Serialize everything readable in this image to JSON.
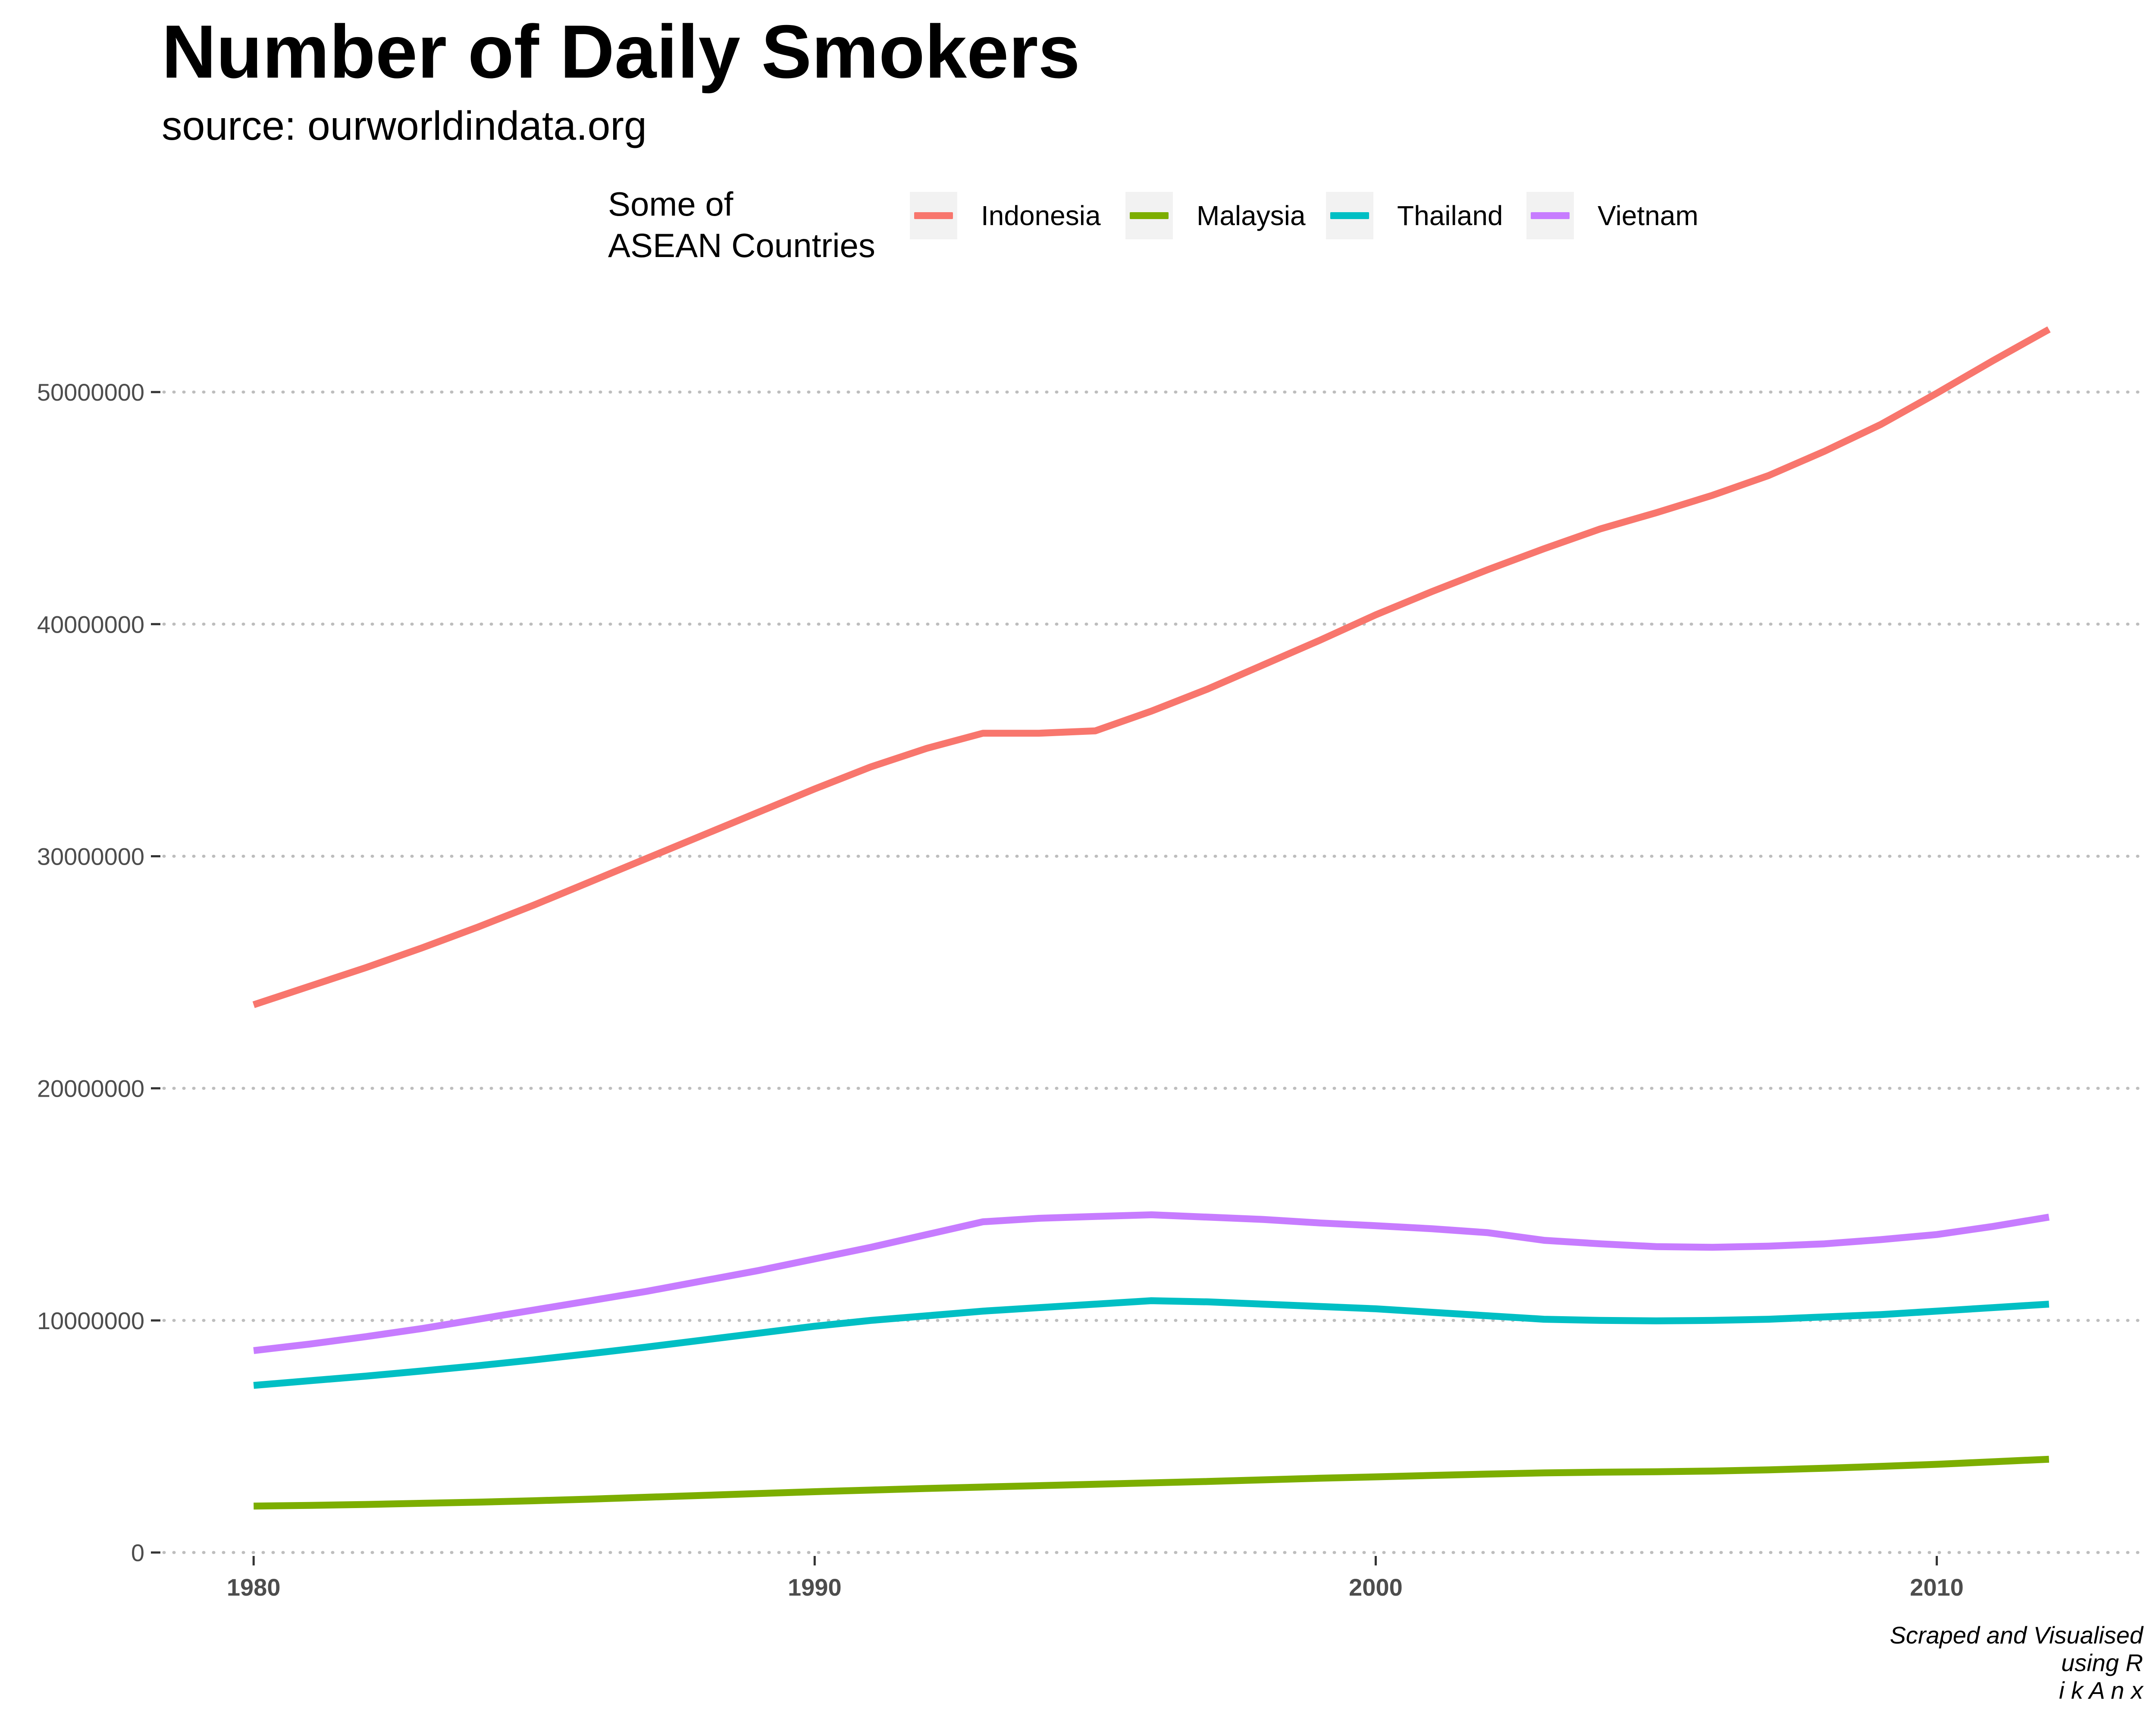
{
  "chart_data": {
    "type": "line",
    "title": "Number of Daily Smokers",
    "subtitle": "source: ourworldindata.org",
    "caption": [
      "Scraped and Visualised",
      "using R",
      "i k A n x"
    ],
    "legend": {
      "title": "Some of\nASEAN Countries",
      "placement": "top"
    },
    "xlabel": "",
    "ylabel": "",
    "xlim": [
      1978.4,
      2013.6
    ],
    "ylim": [
      0,
      55000000
    ],
    "xticks": [
      1980,
      1990,
      2000,
      2010
    ],
    "yticks": [
      0,
      10000000,
      20000000,
      30000000,
      40000000,
      50000000
    ],
    "ytick_labels": [
      "0",
      "10000000",
      "20000000",
      "30000000",
      "40000000",
      "50000000"
    ],
    "grid": "horizontal dotted",
    "x": [
      1980,
      1981,
      1982,
      1983,
      1984,
      1985,
      1986,
      1987,
      1988,
      1989,
      1990,
      1991,
      1992,
      1993,
      1994,
      1995,
      1996,
      1997,
      1998,
      1999,
      2000,
      2001,
      2002,
      2003,
      2004,
      2005,
      2006,
      2007,
      2008,
      2009,
      2010,
      2011,
      2012
    ],
    "series": [
      {
        "name": "Indonesia",
        "color": "#f8766d",
        "values": [
          23600000,
          24400000,
          25200000,
          26050000,
          26950000,
          27900000,
          28900000,
          29900000,
          30900000,
          31900000,
          32900000,
          33850000,
          34650000,
          35300000,
          35300000,
          35400000,
          36250000,
          37200000,
          38250000,
          39300000,
          40400000,
          41400000,
          42350000,
          43250000,
          44100000,
          44800000,
          45550000,
          46400000,
          47450000,
          48600000,
          49950000,
          51350000,
          52700000
        ]
      },
      {
        "name": "Malaysia",
        "color": "#7cae00",
        "values": [
          2000000,
          2030000,
          2070000,
          2120000,
          2170000,
          2230000,
          2300000,
          2380000,
          2460000,
          2540000,
          2620000,
          2690000,
          2760000,
          2820000,
          2880000,
          2940000,
          3000000,
          3060000,
          3130000,
          3200000,
          3260000,
          3320000,
          3380000,
          3430000,
          3460000,
          3480000,
          3510000,
          3560000,
          3630000,
          3710000,
          3800000,
          3910000,
          4020000
        ]
      },
      {
        "name": "Thailand",
        "color": "#00bfc4",
        "values": [
          7200000,
          7400000,
          7600000,
          7820000,
          8050000,
          8300000,
          8570000,
          8850000,
          9150000,
          9450000,
          9750000,
          10000000,
          10200000,
          10400000,
          10550000,
          10700000,
          10850000,
          10800000,
          10700000,
          10600000,
          10500000,
          10350000,
          10200000,
          10050000,
          10000000,
          9980000,
          10000000,
          10050000,
          10150000,
          10250000,
          10400000,
          10550000,
          10700000
        ]
      },
      {
        "name": "Vietnam",
        "color": "#c77cff",
        "values": [
          8700000,
          8980000,
          9300000,
          9650000,
          10050000,
          10450000,
          10850000,
          11250000,
          11700000,
          12150000,
          12650000,
          13150000,
          13700000,
          14250000,
          14400000,
          14480000,
          14550000,
          14450000,
          14350000,
          14200000,
          14080000,
          13950000,
          13780000,
          13450000,
          13300000,
          13180000,
          13150000,
          13200000,
          13300000,
          13480000,
          13700000,
          14050000,
          14450000
        ]
      }
    ]
  }
}
